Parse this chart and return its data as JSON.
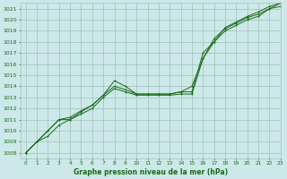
{
  "title": "Graphe pression niveau de la mer (hPa)",
  "background_color": "#cce8e8",
  "grid_color": "#a0c0b8",
  "line_color": "#1a6b1a",
  "xlim": [
    -0.5,
    23
  ],
  "ylim": [
    1007.5,
    1021.5
  ],
  "yticks": [
    1008,
    1009,
    1010,
    1011,
    1012,
    1013,
    1014,
    1015,
    1016,
    1017,
    1018,
    1019,
    1020,
    1021
  ],
  "xticks": [
    0,
    1,
    2,
    3,
    4,
    5,
    6,
    7,
    8,
    9,
    10,
    11,
    12,
    13,
    14,
    15,
    16,
    17,
    18,
    19,
    20,
    21,
    22,
    23
  ],
  "series1_x": [
    0,
    1,
    2,
    3,
    4,
    5,
    6,
    7,
    8,
    9,
    10,
    11,
    12,
    13,
    14,
    15,
    16,
    17,
    18,
    19,
    20,
    21,
    22,
    23
  ],
  "series1_y": [
    1008.0,
    1009.0,
    1009.5,
    1010.5,
    1011.0,
    1011.5,
    1012.0,
    1013.0,
    1013.8,
    1013.5,
    1013.2,
    1013.2,
    1013.2,
    1013.2,
    1013.3,
    1013.3,
    1016.5,
    1018.0,
    1019.0,
    1019.5,
    1020.0,
    1020.3,
    1021.0,
    1021.2
  ],
  "series2_x": [
    0,
    1,
    2,
    3,
    4,
    5,
    6,
    7,
    8,
    9,
    10,
    11,
    12,
    13,
    14,
    15,
    16,
    17,
    18,
    19,
    20,
    21,
    22,
    23
  ],
  "series2_y": [
    1008.0,
    1009.0,
    1010.0,
    1011.0,
    1011.0,
    1011.7,
    1012.3,
    1013.2,
    1014.5,
    1014.0,
    1013.3,
    1013.3,
    1013.3,
    1013.3,
    1013.5,
    1014.0,
    1016.5,
    1018.3,
    1019.2,
    1019.7,
    1020.2,
    1020.5,
    1021.0,
    1021.5
  ],
  "series3_x": [
    0,
    1,
    2,
    3,
    4,
    5,
    6,
    7,
    8,
    9,
    10,
    11,
    12,
    13,
    14,
    15,
    16,
    17,
    18,
    19,
    20,
    21,
    22,
    23
  ],
  "series3_y": [
    1008.0,
    1009.0,
    1010.0,
    1011.0,
    1011.2,
    1011.8,
    1012.3,
    1013.2,
    1014.0,
    1013.7,
    1013.3,
    1013.3,
    1013.3,
    1013.3,
    1013.5,
    1013.5,
    1017.0,
    1018.0,
    1019.3,
    1019.8,
    1020.3,
    1020.7,
    1021.2,
    1021.5
  ]
}
